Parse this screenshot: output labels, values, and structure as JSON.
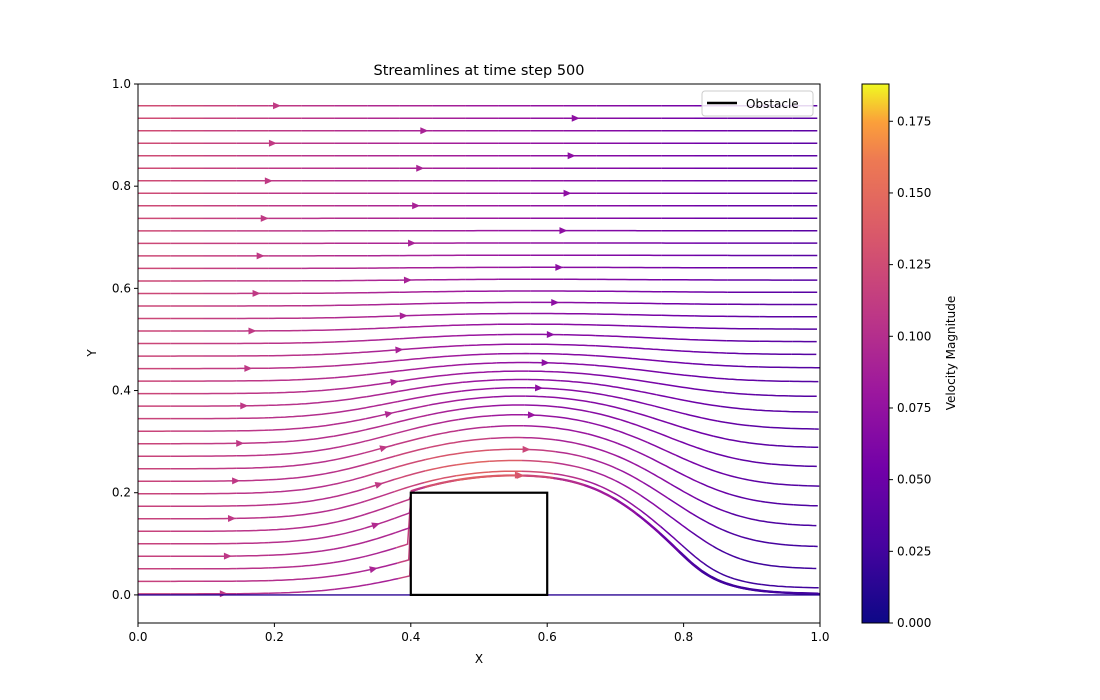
{
  "chart_data": {
    "type": "streamplot",
    "title": "Streamlines at time step 500",
    "xlabel": "X",
    "ylabel": "Y",
    "xlim": [
      0.0,
      1.0
    ],
    "ylim": [
      -0.055,
      1.0
    ],
    "x_ticks": [
      "0.0",
      "0.2",
      "0.4",
      "0.6",
      "0.8",
      "1.0"
    ],
    "y_ticks": [
      "0.0",
      "0.2",
      "0.4",
      "0.6",
      "0.8",
      "1.0"
    ],
    "x_tick_values": [
      0.0,
      0.2,
      0.4,
      0.6,
      0.8,
      1.0
    ],
    "y_tick_values": [
      0.0,
      0.2,
      0.4,
      0.6,
      0.8,
      1.0
    ],
    "obstacle": {
      "x0": 0.4,
      "y0": 0.0,
      "x1": 0.6,
      "y1": 0.2,
      "label": "Obstacle",
      "color": "#000000"
    },
    "legend": {
      "placement": "top-right",
      "entries": [
        "Obstacle"
      ]
    },
    "colorbar": {
      "label": "Velocity Magnitude",
      "colormap": "plasma",
      "min": 0.0,
      "max": 0.188,
      "ticks": [
        "0.000",
        "0.025",
        "0.050",
        "0.075",
        "0.100",
        "0.125",
        "0.150",
        "0.175"
      ],
      "tick_values": [
        0.0,
        0.025,
        0.05,
        0.075,
        0.1,
        0.125,
        0.15,
        0.175
      ]
    },
    "grid": false
  }
}
